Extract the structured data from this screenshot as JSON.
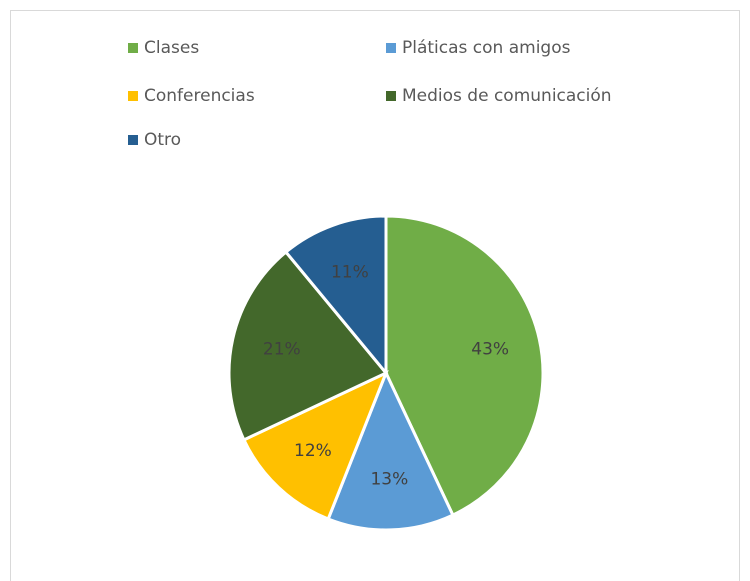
{
  "chart_data": {
    "type": "pie",
    "categories": [
      "Clases",
      "Pláticas con amigos",
      "Conferencias",
      "Medios de comunicación",
      "Otro"
    ],
    "values": [
      43,
      13,
      12,
      21,
      11
    ],
    "value_labels": [
      "43%",
      "13%",
      "12%",
      "21%",
      "11%"
    ],
    "colors": [
      "#70ad47",
      "#5b9bd5",
      "#ffc000",
      "#43682b",
      "#255e91"
    ],
    "legend": "top"
  }
}
